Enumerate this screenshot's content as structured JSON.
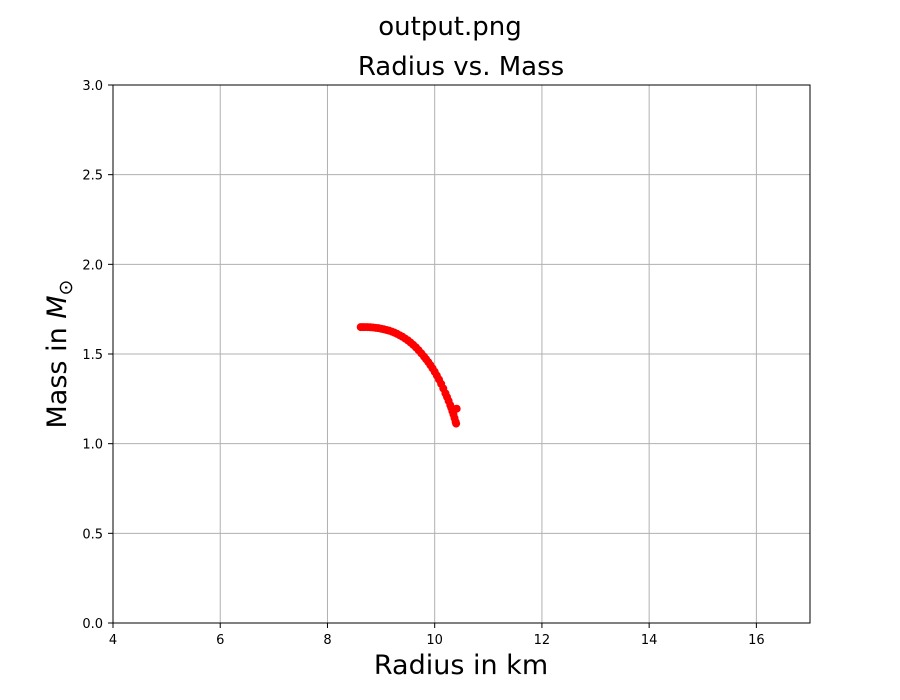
{
  "window": {
    "title": "output.png"
  },
  "chart_data": {
    "type": "scatter",
    "title": "Radius vs. Mass",
    "xlabel": "Radius in km",
    "ylabel_text": "Mass in ",
    "ylabel_symbol": "M",
    "ylabel_subscript": "⊙",
    "xlim": [
      4,
      17
    ],
    "ylim": [
      0.0,
      3.0
    ],
    "xticks": [
      4,
      6,
      8,
      10,
      12,
      14,
      16
    ],
    "xtick_labels": [
      "4",
      "6",
      "8",
      "10",
      "12",
      "14",
      "16"
    ],
    "yticks": [
      0.0,
      0.5,
      1.0,
      1.5,
      2.0,
      2.5,
      3.0
    ],
    "ytick_labels": [
      "0.0",
      "0.5",
      "1.0",
      "1.5",
      "2.0",
      "2.5",
      "3.0"
    ],
    "grid": true,
    "marker_color": "#ff0000",
    "grid_color": "#b0b0b0",
    "series": [
      {
        "x": [
          8.62,
          8.66,
          8.7,
          8.75,
          8.8,
          8.85,
          8.9,
          8.95,
          9.0,
          9.05,
          9.1,
          9.15,
          9.2,
          9.25,
          9.3,
          9.35,
          9.4,
          9.45,
          9.5,
          9.55,
          9.6,
          9.65,
          9.7,
          9.75,
          9.8,
          9.84,
          9.88,
          9.92,
          9.96,
          10.0,
          10.04,
          10.08,
          10.12,
          10.16,
          10.2,
          10.23,
          10.26,
          10.29,
          10.31,
          10.33,
          10.35,
          10.37,
          10.39,
          10.4,
          10.41
        ],
        "y": [
          1.65,
          1.65,
          1.65,
          1.65,
          1.649,
          1.648,
          1.646,
          1.644,
          1.641,
          1.638,
          1.634,
          1.63,
          1.625,
          1.619,
          1.612,
          1.604,
          1.596,
          1.586,
          1.576,
          1.564,
          1.551,
          1.537,
          1.521,
          1.504,
          1.486,
          1.471,
          1.455,
          1.438,
          1.42,
          1.401,
          1.38,
          1.358,
          1.334,
          1.308,
          1.281,
          1.26,
          1.238,
          1.215,
          1.199,
          1.181,
          1.163,
          1.143,
          1.122,
          1.112,
          1.195
        ]
      }
    ]
  }
}
